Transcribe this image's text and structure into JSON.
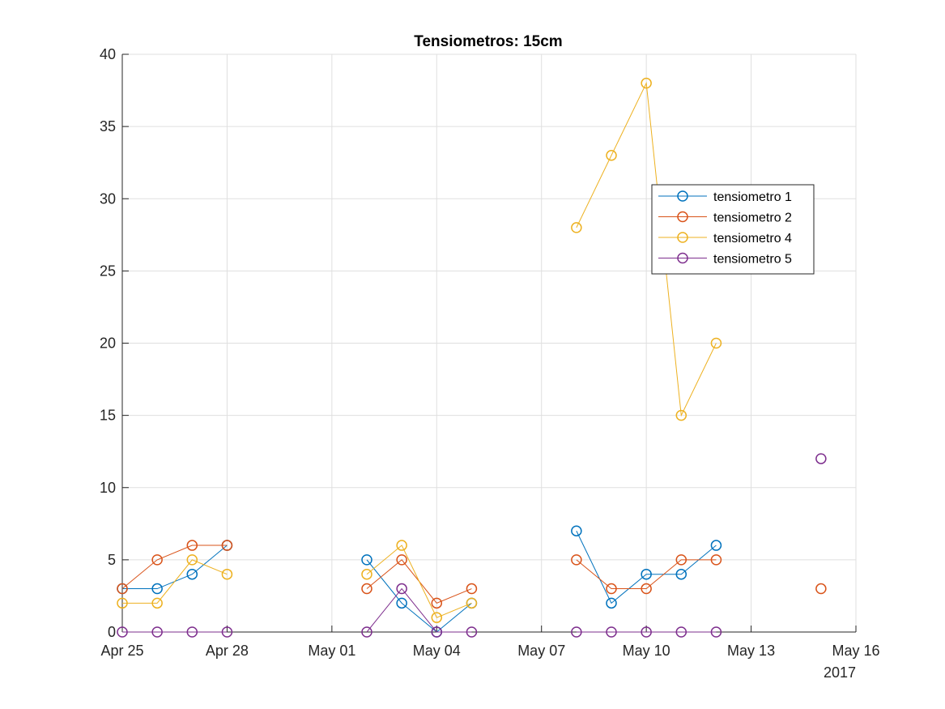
{
  "chart_data": {
    "type": "line",
    "title": "Tensiometros: 15cm",
    "xlabel": "",
    "ylabel": "",
    "x_ticks": [
      "Apr 25",
      "Apr 28",
      "May 01",
      "May 04",
      "May 07",
      "May 10",
      "May 13",
      "May 16"
    ],
    "x_year_label": "2017",
    "xlim": [
      "2017-04-25",
      "2017-05-16"
    ],
    "y_ticks": [
      0,
      5,
      10,
      15,
      20,
      25,
      30,
      35,
      40
    ],
    "ylim": [
      0,
      40
    ],
    "grid": true,
    "legend_position": "upper-right (inside, near top right)",
    "marker": "circle",
    "series": [
      {
        "name": "tensiometro 1",
        "color": "#0072BD",
        "points": [
          {
            "date": "2017-04-25",
            "y": 3
          },
          {
            "date": "2017-04-26",
            "y": 3
          },
          {
            "date": "2017-04-27",
            "y": 4
          },
          {
            "date": "2017-04-28",
            "y": 6
          },
          {
            "date": "2017-05-02",
            "y": 5
          },
          {
            "date": "2017-05-03",
            "y": 2
          },
          {
            "date": "2017-05-04",
            "y": 0
          },
          {
            "date": "2017-05-05",
            "y": 2
          },
          {
            "date": "2017-05-08",
            "y": 7
          },
          {
            "date": "2017-05-09",
            "y": 2
          },
          {
            "date": "2017-05-10",
            "y": 4
          },
          {
            "date": "2017-05-11",
            "y": 4
          },
          {
            "date": "2017-05-12",
            "y": 6
          }
        ]
      },
      {
        "name": "tensiometro 2",
        "color": "#D95319",
        "points": [
          {
            "date": "2017-04-25",
            "y": 3
          },
          {
            "date": "2017-04-26",
            "y": 5
          },
          {
            "date": "2017-04-27",
            "y": 6
          },
          {
            "date": "2017-04-28",
            "y": 6
          },
          {
            "date": "2017-05-02",
            "y": 3
          },
          {
            "date": "2017-05-03",
            "y": 5
          },
          {
            "date": "2017-05-04",
            "y": 2
          },
          {
            "date": "2017-05-05",
            "y": 3
          },
          {
            "date": "2017-05-08",
            "y": 5
          },
          {
            "date": "2017-05-09",
            "y": 3
          },
          {
            "date": "2017-05-10",
            "y": 3
          },
          {
            "date": "2017-05-11",
            "y": 5
          },
          {
            "date": "2017-05-12",
            "y": 5
          },
          {
            "date": "2017-05-15",
            "y": 3
          }
        ]
      },
      {
        "name": "tensiometro 4",
        "color": "#EDB120",
        "points": [
          {
            "date": "2017-04-25",
            "y": 2
          },
          {
            "date": "2017-04-26",
            "y": 2
          },
          {
            "date": "2017-04-27",
            "y": 5
          },
          {
            "date": "2017-04-28",
            "y": 4
          },
          {
            "date": "2017-05-02",
            "y": 4
          },
          {
            "date": "2017-05-03",
            "y": 6
          },
          {
            "date": "2017-05-04",
            "y": 1
          },
          {
            "date": "2017-05-05",
            "y": 2
          },
          {
            "date": "2017-05-08",
            "y": 28
          },
          {
            "date": "2017-05-09",
            "y": 33
          },
          {
            "date": "2017-05-10",
            "y": 38
          },
          {
            "date": "2017-05-11",
            "y": 15
          },
          {
            "date": "2017-05-12",
            "y": 20
          }
        ]
      },
      {
        "name": "tensiometro 5",
        "color": "#7E2F8E",
        "points": [
          {
            "date": "2017-04-25",
            "y": 0
          },
          {
            "date": "2017-04-26",
            "y": 0
          },
          {
            "date": "2017-04-27",
            "y": 0
          },
          {
            "date": "2017-04-28",
            "y": 0
          },
          {
            "date": "2017-05-02",
            "y": 0
          },
          {
            "date": "2017-05-03",
            "y": 3
          },
          {
            "date": "2017-05-04",
            "y": 0
          },
          {
            "date": "2017-05-05",
            "y": 0
          },
          {
            "date": "2017-05-08",
            "y": 0
          },
          {
            "date": "2017-05-09",
            "y": 0
          },
          {
            "date": "2017-05-10",
            "y": 0
          },
          {
            "date": "2017-05-11",
            "y": 0
          },
          {
            "date": "2017-05-12",
            "y": 0
          },
          {
            "date": "2017-05-15",
            "y": 12
          }
        ]
      }
    ]
  }
}
